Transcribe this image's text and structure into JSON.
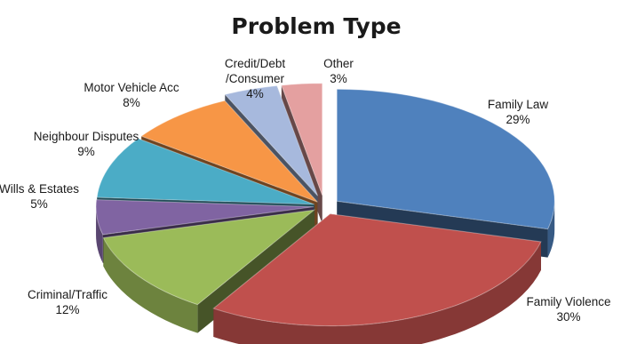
{
  "chart_data": {
    "type": "pie",
    "title": "Problem Type",
    "exploded": true,
    "style": "3d",
    "slices": [
      {
        "name": "Family Law",
        "value": 29,
        "label": "29%",
        "color": "#4F81BD"
      },
      {
        "name": "Family Violence",
        "value": 30,
        "label": "30%",
        "color": "#C0504D"
      },
      {
        "name": "Criminal/Traffic",
        "value": 12,
        "label": "12%",
        "color": "#9BBB59"
      },
      {
        "name": "Wills & Estates",
        "value": 5,
        "label": "5%",
        "color": "#8064A2"
      },
      {
        "name": "Neighbour Disputes",
        "value": 9,
        "label": "9%",
        "color": "#4BACC6"
      },
      {
        "name": "Motor Vehicle Acc",
        "value": 8,
        "label": "8%",
        "color": "#F79646"
      },
      {
        "name": "Credit/Debt /Consumer",
        "value": 4,
        "label": "4%",
        "color": "#A7B9DD"
      },
      {
        "name": "Other",
        "value": 3,
        "label": "3%",
        "color": "#E4A0A0"
      }
    ]
  }
}
